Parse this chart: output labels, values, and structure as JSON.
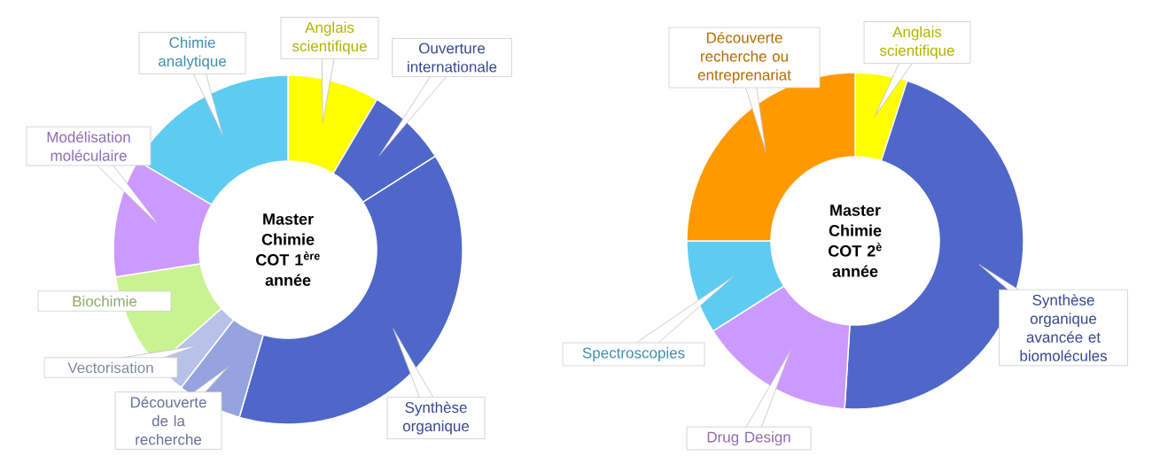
{
  "chart_data": [
    {
      "type": "donut",
      "title": "Master Chimie COT 1$^{ère}$ année",
      "categories": [
        "Anglais scientifique",
        "Ouverture internationale",
        "Synthèse organique",
        "Découverte de la recherche",
        "Vectorisation",
        "Biochimie",
        "Modélisation moléculaire",
        "Chimie analytique"
      ],
      "values": [
        8.5,
        7.5,
        38.5,
        6,
        3,
        9,
        11,
        16.5
      ],
      "colors": [
        "#ffff00",
        "#4f67c8",
        "#4f67c8",
        "#95a3de",
        "#b8c2e8",
        "#c9f291",
        "#cc99ff",
        "#5ecbf2"
      ]
    },
    {
      "type": "donut",
      "title": "Master Chimie COT 2$^{è}$ année",
      "categories": [
        "Anglais scientifique",
        "Synthèse organique avancée et biomolécules",
        "Drug Design",
        "Spectroscopies",
        "Découverte recherche ou entreprenariat"
      ],
      "values": [
        5,
        46,
        15,
        9,
        25
      ],
      "colors": [
        "#ffff00",
        "#4f67c8",
        "#cc99ff",
        "#5ecbf2",
        "#ff9900"
      ]
    }
  ]
}
